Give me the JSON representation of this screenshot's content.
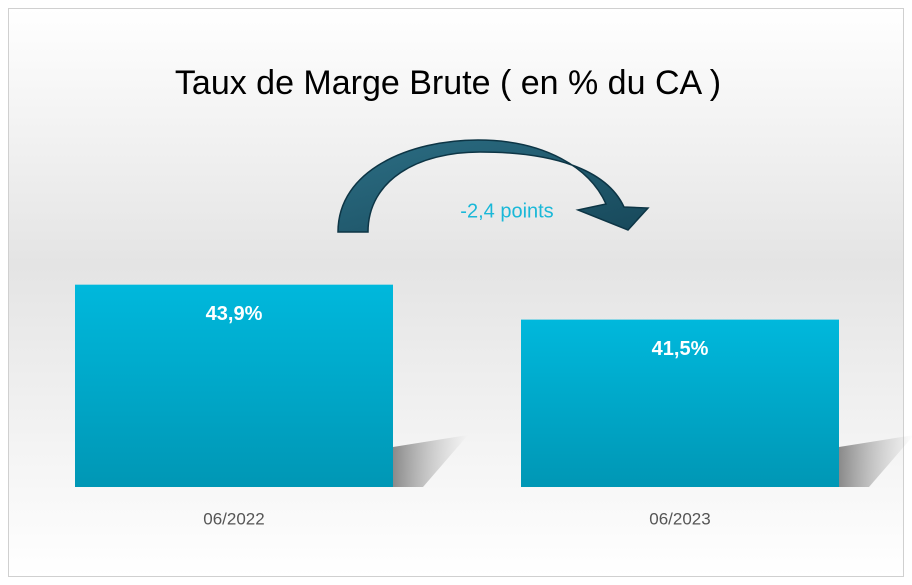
{
  "chart_data": {
    "type": "bar",
    "title": "Taux de Marge Brute ( en % du CA )",
    "categories": [
      "06/2022",
      "06/2023"
    ],
    "values": [
      43.9,
      41.5
    ],
    "value_labels": [
      "43,9%",
      "41,5%"
    ],
    "color": "#00b8dc",
    "ylim": [
      30,
      48
    ],
    "annotations": [
      "-2,4 points"
    ]
  }
}
